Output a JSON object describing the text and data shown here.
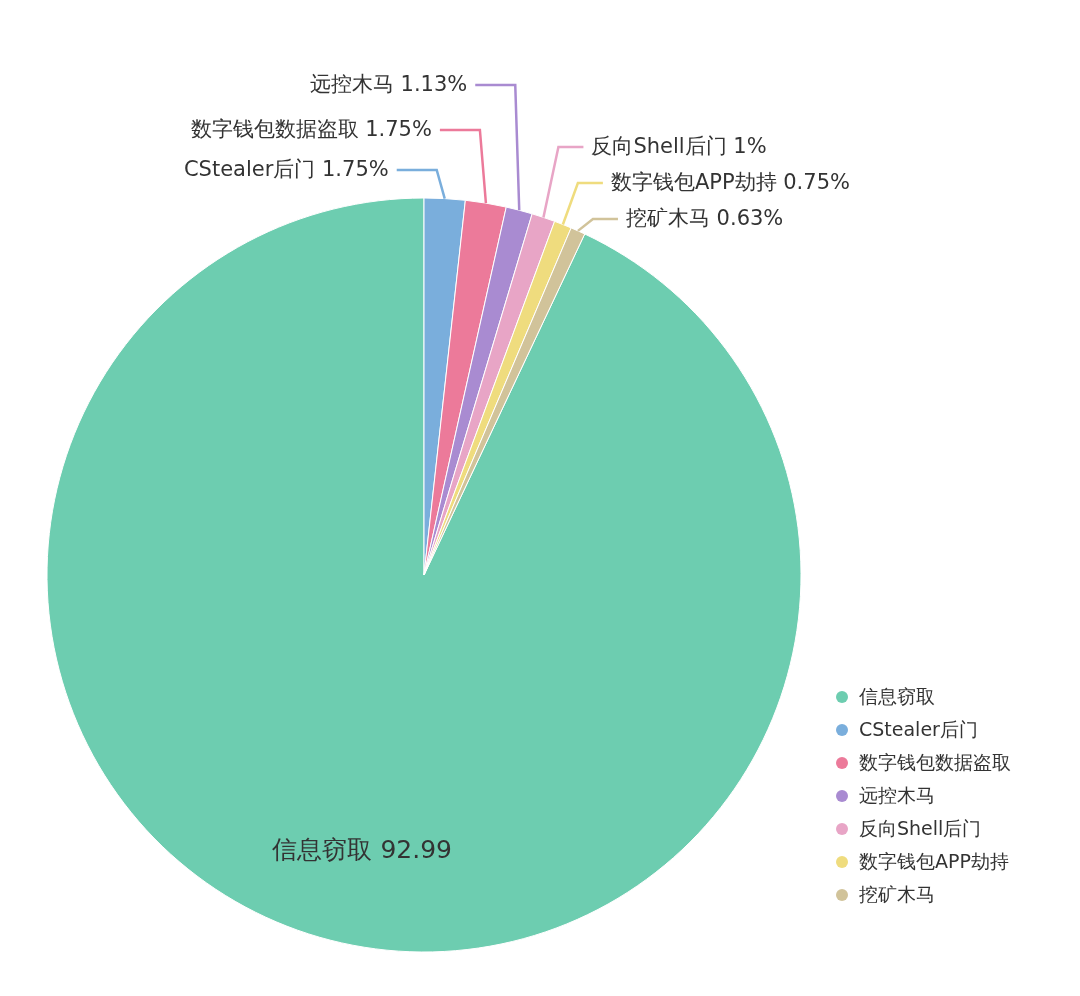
{
  "chart_data": {
    "type": "pie",
    "categories": [
      "信息窃取",
      "CStealer后门",
      "数字钱包数据盗取",
      "远控木马",
      "反向Shell后门",
      "数字钱包APP劫持",
      "挖矿木马"
    ],
    "values": [
      92.99,
      1.75,
      1.75,
      1.13,
      1,
      0.75,
      0.63
    ],
    "value_labels": [
      "92.99",
      "1.75%",
      "1.75%",
      "1.13%",
      "1%",
      "0.75%",
      "0.63%"
    ],
    "colors": [
      "#6dcdb0",
      "#7aaedc",
      "#ec7a9a",
      "#a98bd1",
      "#e8a5c6",
      "#efdc7e",
      "#d1c39a"
    ],
    "legend": "bottom right"
  }
}
